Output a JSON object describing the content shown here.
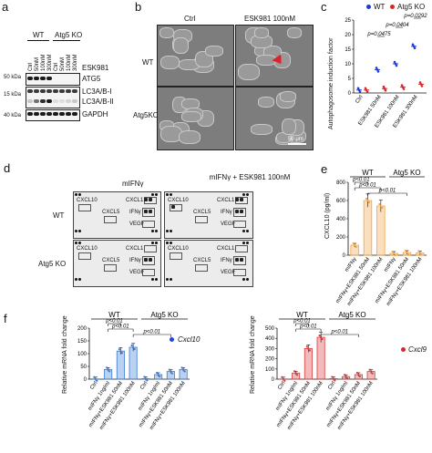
{
  "panels": {
    "a": {
      "letter": "a",
      "groups": [
        "WT",
        "Atg5 KO"
      ],
      "lanes": [
        "Ctrl",
        "50nM",
        "100nM",
        "300nM",
        "Ctrl",
        "50nM",
        "100nM",
        "300nM"
      ],
      "drug_label": "ESK981",
      "mw_markers": [
        "50 kDa",
        "15 kDa",
        "40 kDa"
      ],
      "blots": [
        "ATG5",
        "LC3A/B-I",
        "LC3A/B-II",
        "GAPDH"
      ]
    },
    "b": {
      "letter": "b",
      "columns": [
        "Ctrl",
        "ESK981 100nM"
      ],
      "rows": [
        "WT",
        "Atg5KO"
      ],
      "scalebar": "50 μm"
    },
    "c": {
      "letter": "c",
      "legend": [
        "WT",
        "Atg5 KO"
      ],
      "ylabel": "Autophagosome induction factor",
      "pvals": [
        "p=0.0292",
        "p=0.0404",
        "p=0.0475"
      ],
      "xticks": [
        "Ctrl",
        "ESK981 50nM",
        "ESK981 100nM",
        "ESK981 300nM"
      ],
      "yticks": [
        "0",
        "5",
        "10",
        "15",
        "20",
        "25"
      ]
    },
    "d": {
      "letter": "d",
      "col_titles": [
        "mIFNγ",
        "mIFNγ + ESK981 100nM"
      ],
      "rows": [
        "WT",
        "Atg5 KO"
      ],
      "spot_labels": [
        "CXCL10",
        "CXCL1",
        "CXCL5",
        "IFNγ",
        "VEGF"
      ]
    },
    "e": {
      "letter": "e",
      "groups": [
        "WT",
        "Atg5 KO"
      ],
      "ylabel": "CXCL10 (pg/ml)",
      "pvals": [
        "p<0.01",
        "p<0.01",
        "p<0.01"
      ],
      "xticks": [
        "mIFNγ",
        "mIFNγ+ESK981 50nM",
        "mIFNγ+ESK981 100nM",
        "mIFNγ",
        "mIFNγ+ESK981 50nM",
        "mIFNγ+ESK981 100nM"
      ],
      "yticks": [
        "0",
        "200",
        "400",
        "600",
        "800"
      ]
    },
    "f": {
      "letter": "f",
      "left": {
        "gene": "Cxcl10",
        "groups": [
          "WT",
          "Atg5 KO"
        ],
        "pvals": [
          "p<0.01",
          "p<0.01",
          "p<0.01"
        ],
        "ylabel": "Relative mRNA fold change",
        "yticks": [
          "0",
          "50",
          "100",
          "150",
          "200"
        ],
        "xticks": [
          "Ctrl",
          "mIFNγ 1ng/ml",
          "mIFNγ+ESK981 50nM",
          "mIFNγ+ESK981 100nM",
          "Ctrl",
          "mIFNγ 1ng/ml",
          "mIFNγ+ESK981 50nM",
          "mIFNγ+ESK981 100nM"
        ]
      },
      "right": {
        "gene": "Cxcl9",
        "groups": [
          "WT",
          "Atg5 KO"
        ],
        "pvals": [
          "p<0.01",
          "p<0.01",
          "p<0.01"
        ],
        "ylabel": "Relative mRNA fold change",
        "yticks": [
          "0",
          "100",
          "200",
          "300",
          "400",
          "500"
        ],
        "xticks": [
          "Ctrl",
          "mIFNγ 1ng/ml",
          "mIFNγ+ESK981 50nM",
          "mIFNγ+ESK981 100nM",
          "Ctrl",
          "mIFNγ 1ng/ml",
          "mIFNγ+ESK981 50nM",
          "mIFNγ+ESK981 100nM"
        ]
      }
    }
  },
  "chart_data": [
    {
      "id": "c",
      "type": "scatter",
      "categories": [
        "Ctrl",
        "ESK981 50nM",
        "ESK981 100nM",
        "ESK981 300nM"
      ],
      "series": [
        {
          "name": "WT",
          "values": [
            1,
            8,
            10,
            16
          ],
          "color": "#1f3bd1"
        },
        {
          "name": "Atg5 KO",
          "values": [
            1,
            1.5,
            2,
            3
          ],
          "color": "#d62828"
        }
      ],
      "ylim": [
        0,
        25
      ]
    },
    {
      "id": "e",
      "type": "bar",
      "categories": [
        "mIFNγ",
        "mIFNγ+ESK981 50nM",
        "mIFNγ+ESK981 100nM",
        "mIFNγ",
        "mIFNγ+ESK981 50nM",
        "mIFNγ+ESK981 100nM"
      ],
      "values": [
        110,
        600,
        540,
        20,
        30,
        25
      ],
      "color": "#f4a340",
      "ylim": [
        0,
        800
      ]
    },
    {
      "id": "f-left",
      "type": "bar",
      "categories": [
        "Ctrl",
        "mIFNγ 1ng/ml",
        "mIFNγ+ESK981 50nM",
        "mIFNγ+ESK981 100nM",
        "Ctrl",
        "mIFNγ 1ng/ml",
        "mIFNγ+ESK981 50nM",
        "mIFNγ+ESK981 100nM"
      ],
      "values": [
        1,
        38,
        110,
        125,
        2,
        18,
        30,
        38
      ],
      "color": "#3a7bd5",
      "ylim": [
        0,
        200
      ]
    },
    {
      "id": "f-right",
      "type": "bar",
      "categories": [
        "Ctrl",
        "mIFNγ 1ng/ml",
        "mIFNγ+ESK981 50nM",
        "mIFNγ+ESK981 100nM",
        "Ctrl",
        "mIFNγ 1ng/ml",
        "mIFNγ+ESK981 50nM",
        "mIFNγ+ESK981 100nM"
      ],
      "values": [
        2,
        60,
        300,
        410,
        5,
        25,
        45,
        75
      ],
      "color": "#d83b3b",
      "ylim": [
        0,
        500
      ]
    }
  ]
}
